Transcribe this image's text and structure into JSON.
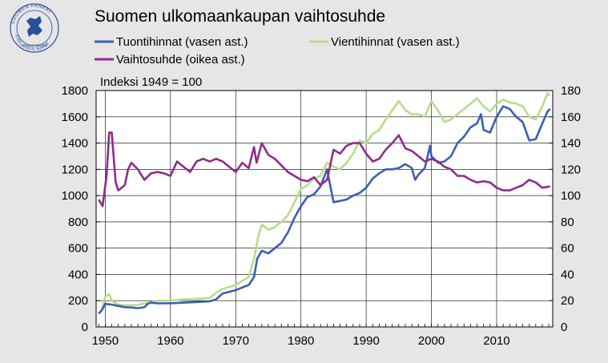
{
  "title": "Suomen ulkomaankaupan vaihtosuhde",
  "logo": {
    "text_top": "SUOMEN PANKKI",
    "text_bottom": "FINLANDS BANK",
    "text_inner": "EUROSYSTEEMI",
    "color": "#2a4f9c"
  },
  "chart_data": {
    "type": "line",
    "annotation": "Indeksi 1949 = 100",
    "x_ticks": [
      "1950",
      "1960",
      "1970",
      "1980",
      "1990",
      "2000",
      "2010"
    ],
    "y_left_ticks": [
      "1800",
      "1600",
      "1400",
      "1200",
      "1000",
      "800",
      "600",
      "400",
      "200",
      "0"
    ],
    "y_right_ticks": [
      "180",
      "160",
      "140",
      "120",
      "100",
      "80",
      "60",
      "40",
      "20",
      "0"
    ],
    "xlim": [
      1948.6,
      2018.6
    ],
    "ylim_left": [
      0,
      1800
    ],
    "ylim_right": [
      0,
      180
    ],
    "grid": true,
    "legend_placement": "top",
    "series": [
      {
        "name": "Tuontihinnat (vasen ast.)",
        "axis": "left",
        "color": "#3c5fb0",
        "points": [
          [
            1949,
            100
          ],
          [
            1949.5,
            130
          ],
          [
            1950,
            175
          ],
          [
            1951,
            170
          ],
          [
            1952,
            160
          ],
          [
            1953,
            150
          ],
          [
            1954,
            148
          ],
          [
            1955,
            143
          ],
          [
            1956,
            150
          ],
          [
            1956.5,
            175
          ],
          [
            1957,
            185
          ],
          [
            1958,
            180
          ],
          [
            1960,
            180
          ],
          [
            1962,
            185
          ],
          [
            1964,
            190
          ],
          [
            1966,
            195
          ],
          [
            1967,
            210
          ],
          [
            1968,
            255
          ],
          [
            1970,
            280
          ],
          [
            1971,
            300
          ],
          [
            1972,
            320
          ],
          [
            1972.8,
            380
          ],
          [
            1973.3,
            520
          ],
          [
            1974,
            580
          ],
          [
            1975,
            560
          ],
          [
            1976,
            600
          ],
          [
            1977,
            640
          ],
          [
            1978,
            720
          ],
          [
            1979,
            830
          ],
          [
            1980,
            920
          ],
          [
            1981,
            990
          ],
          [
            1982,
            1010
          ],
          [
            1983,
            1070
          ],
          [
            1984,
            1200
          ],
          [
            1984.6,
            1050
          ],
          [
            1985,
            950
          ],
          [
            1986,
            960
          ],
          [
            1987,
            970
          ],
          [
            1988,
            1000
          ],
          [
            1989,
            1020
          ],
          [
            1990,
            1060
          ],
          [
            1991,
            1130
          ],
          [
            1992,
            1170
          ],
          [
            1993,
            1200
          ],
          [
            1994,
            1200
          ],
          [
            1995,
            1210
          ],
          [
            1996,
            1240
          ],
          [
            1997,
            1210
          ],
          [
            1997.5,
            1120
          ],
          [
            1998,
            1160
          ],
          [
            1999,
            1210
          ],
          [
            1999.8,
            1380
          ],
          [
            2000,
            1300
          ],
          [
            2001,
            1250
          ],
          [
            2002,
            1260
          ],
          [
            2003,
            1300
          ],
          [
            2004,
            1400
          ],
          [
            2005,
            1450
          ],
          [
            2006,
            1520
          ],
          [
            2007,
            1550
          ],
          [
            2007.6,
            1620
          ],
          [
            2008,
            1500
          ],
          [
            2009,
            1480
          ],
          [
            2010,
            1600
          ],
          [
            2011,
            1680
          ],
          [
            2012,
            1660
          ],
          [
            2013,
            1600
          ],
          [
            2014,
            1560
          ],
          [
            2015,
            1420
          ],
          [
            2016,
            1430
          ],
          [
            2017,
            1550
          ],
          [
            2017.8,
            1640
          ],
          [
            2018.2,
            1660
          ]
        ]
      },
      {
        "name": "Vientihinnat (vasen ast.)",
        "axis": "left",
        "color": "#b7dc8e",
        "points": [
          [
            1949,
            100
          ],
          [
            1949.5,
            130
          ],
          [
            1950,
            230
          ],
          [
            1950.6,
            250
          ],
          [
            1951,
            200
          ],
          [
            1952,
            170
          ],
          [
            1953,
            165
          ],
          [
            1955,
            168
          ],
          [
            1957,
            190
          ],
          [
            1958,
            200
          ],
          [
            1960,
            200
          ],
          [
            1962,
            210
          ],
          [
            1964,
            215
          ],
          [
            1966,
            220
          ],
          [
            1967,
            260
          ],
          [
            1968,
            290
          ],
          [
            1970,
            320
          ],
          [
            1971,
            350
          ],
          [
            1972,
            380
          ],
          [
            1972.8,
            520
          ],
          [
            1973.5,
            700
          ],
          [
            1974,
            780
          ],
          [
            1975,
            740
          ],
          [
            1976,
            760
          ],
          [
            1977,
            800
          ],
          [
            1978,
            850
          ],
          [
            1979,
            950
          ],
          [
            1980,
            1050
          ],
          [
            1981,
            1080
          ],
          [
            1982,
            1130
          ],
          [
            1983,
            1150
          ],
          [
            1984,
            1250
          ],
          [
            1985,
            1220
          ],
          [
            1986,
            1200
          ],
          [
            1987,
            1250
          ],
          [
            1988,
            1320
          ],
          [
            1989,
            1420
          ],
          [
            1990,
            1400
          ],
          [
            1991,
            1470
          ],
          [
            1992,
            1500
          ],
          [
            1993,
            1580
          ],
          [
            1994,
            1650
          ],
          [
            1995,
            1720
          ],
          [
            1996,
            1650
          ],
          [
            1997,
            1620
          ],
          [
            1998,
            1620
          ],
          [
            1999,
            1600
          ],
          [
            2000,
            1720
          ],
          [
            2001,
            1650
          ],
          [
            2002,
            1560
          ],
          [
            2003,
            1580
          ],
          [
            2004,
            1620
          ],
          [
            2005,
            1660
          ],
          [
            2006,
            1700
          ],
          [
            2007,
            1740
          ],
          [
            2008,
            1680
          ],
          [
            2009,
            1640
          ],
          [
            2010,
            1700
          ],
          [
            2011,
            1730
          ],
          [
            2012,
            1710
          ],
          [
            2013,
            1700
          ],
          [
            2014,
            1680
          ],
          [
            2015,
            1600
          ],
          [
            2016,
            1580
          ],
          [
            2017,
            1680
          ],
          [
            2017.8,
            1780
          ],
          [
            2018.2,
            1760
          ]
        ]
      },
      {
        "name": "Vaihtosuhde (oikea ast.)",
        "axis": "right",
        "color": "#8e2c8c",
        "points": [
          [
            1949,
            97
          ],
          [
            1949.6,
            92
          ],
          [
            1950.2,
            115
          ],
          [
            1950.6,
            148
          ],
          [
            1951,
            148
          ],
          [
            1951.6,
            110
          ],
          [
            1952,
            104
          ],
          [
            1953,
            108
          ],
          [
            1953.5,
            120
          ],
          [
            1954,
            125
          ],
          [
            1955,
            120
          ],
          [
            1956,
            112
          ],
          [
            1957,
            117
          ],
          [
            1958,
            118
          ],
          [
            1959,
            117
          ],
          [
            1960,
            115
          ],
          [
            1961,
            126
          ],
          [
            1962,
            122
          ],
          [
            1963,
            118
          ],
          [
            1964,
            126
          ],
          [
            1965,
            128
          ],
          [
            1966,
            126
          ],
          [
            1967,
            128
          ],
          [
            1968,
            126
          ],
          [
            1969,
            122
          ],
          [
            1970,
            118
          ],
          [
            1971,
            125
          ],
          [
            1972,
            121
          ],
          [
            1972.8,
            137
          ],
          [
            1973.2,
            125
          ],
          [
            1974,
            140
          ],
          [
            1975,
            131
          ],
          [
            1976,
            128
          ],
          [
            1977,
            123
          ],
          [
            1978,
            118
          ],
          [
            1979,
            115
          ],
          [
            1980,
            112
          ],
          [
            1981,
            111
          ],
          [
            1982,
            114
          ],
          [
            1983,
            108
          ],
          [
            1984,
            112
          ],
          [
            1985,
            135
          ],
          [
            1986,
            132
          ],
          [
            1987,
            138
          ],
          [
            1988,
            140
          ],
          [
            1989,
            140
          ],
          [
            1990,
            132
          ],
          [
            1991,
            126
          ],
          [
            1992,
            128
          ],
          [
            1993,
            135
          ],
          [
            1994,
            140
          ],
          [
            1995,
            146
          ],
          [
            1996,
            136
          ],
          [
            1997,
            134
          ],
          [
            1998,
            130
          ],
          [
            1999,
            126
          ],
          [
            2000,
            128
          ],
          [
            2001,
            126
          ],
          [
            2002,
            122
          ],
          [
            2003,
            120
          ],
          [
            2004,
            115
          ],
          [
            2005,
            115
          ],
          [
            2006,
            112
          ],
          [
            2007,
            110
          ],
          [
            2008,
            111
          ],
          [
            2009,
            110
          ],
          [
            2010,
            106
          ],
          [
            2011,
            104
          ],
          [
            2012,
            104
          ],
          [
            2013,
            106
          ],
          [
            2014,
            108
          ],
          [
            2015,
            112
          ],
          [
            2016,
            110
          ],
          [
            2017,
            106
          ],
          [
            2018.2,
            107
          ]
        ]
      }
    ]
  }
}
